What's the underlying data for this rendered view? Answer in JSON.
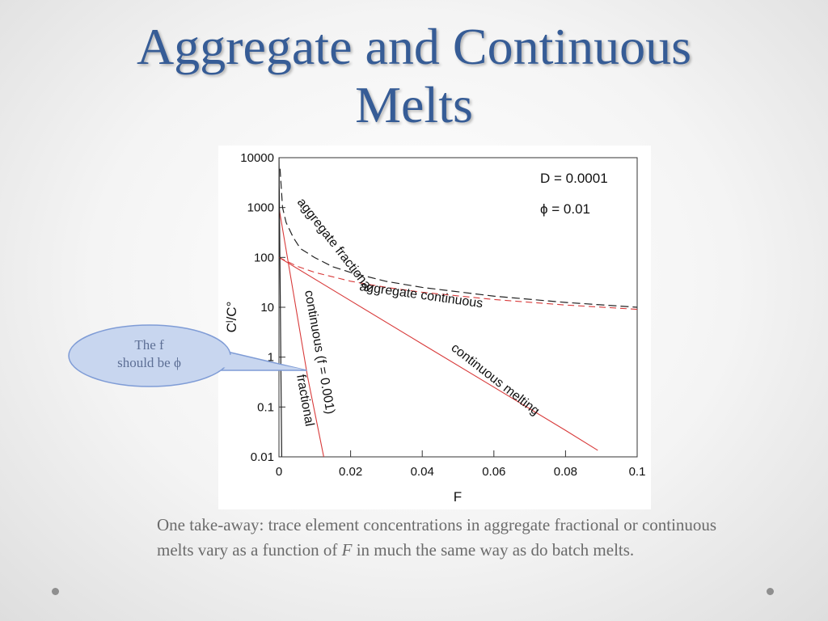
{
  "slide": {
    "title_line1": "Aggregate and Continuous",
    "title_line2": "Melts",
    "body_part1": "One take-away: trace element concentrations in aggregate fractional or continuous melts vary as a function of ",
    "body_italic": "F",
    "body_part2": " in much the same way as do batch melts."
  },
  "callout": {
    "line1": "The f",
    "line2": "should be ϕ"
  },
  "colors": {
    "title": "#365c96",
    "red_curve": "#d83a3a",
    "black_curve": "#222222",
    "callout_fill": "#c8d6ef",
    "callout_border": "#7f9cd6"
  },
  "chart_data": {
    "type": "line",
    "xlabel": "F",
    "ylabel": "Cˡ/C°",
    "xlim": [
      0,
      0.1
    ],
    "ylim": [
      0.01,
      10000
    ],
    "y_scale": "log",
    "x_ticks": [
      0,
      0.02,
      0.04,
      0.06,
      0.08,
      0.1
    ],
    "x_tick_labels": [
      "0",
      "0.02",
      "0.04",
      "0.06",
      "0.08",
      "0.1"
    ],
    "y_ticks": [
      0.01,
      0.1,
      1,
      10,
      100,
      1000,
      10000
    ],
    "y_tick_labels": [
      "0.01",
      "0.1",
      "1",
      "10",
      "100",
      "1000",
      "10000"
    ],
    "annotations": [
      "D = 0.0001",
      "ϕ = 0.01"
    ],
    "series": [
      {
        "label": "aggregate fractional",
        "color": "#222222",
        "dash": "dashed",
        "x": [
          0.0003,
          0.001,
          0.002,
          0.004,
          0.006,
          0.01,
          0.015,
          0.02,
          0.03,
          0.04,
          0.06,
          0.08,
          0.1
        ],
        "y": [
          6000,
          1000,
          500,
          250,
          150,
          99,
          65,
          50,
          33,
          25,
          16.7,
          12.5,
          10
        ]
      },
      {
        "label": "aggregate continuous",
        "color": "#d83a3a",
        "dash": "dashed",
        "x": [
          0,
          0.005,
          0.01,
          0.02,
          0.03,
          0.04,
          0.06,
          0.08,
          0.1
        ],
        "y": [
          100,
          66.7,
          50,
          33.3,
          25,
          20,
          14.3,
          11.1,
          9.1
        ]
      },
      {
        "label": "continuous melting",
        "color": "#d83a3a",
        "dash": "solid",
        "x": [
          0,
          0.02,
          0.04,
          0.06,
          0.08,
          0.089
        ],
        "y": [
          100,
          13.5,
          1.83,
          0.25,
          0.034,
          0.0135
        ]
      },
      {
        "label": "continuous (f = 0.001)",
        "color": "#d83a3a",
        "dash": "solid",
        "x": [
          0,
          0.004,
          0.008,
          0.0125
        ],
        "y": [
          1000,
          20,
          0.4,
          0.01
        ]
      },
      {
        "label": "fractional",
        "color": "#222222",
        "dash": "solid",
        "x": [
          0,
          0.0003,
          0.0006,
          0.0009
        ],
        "y": [
          10000,
          49.8,
          0.2,
          0.001
        ]
      }
    ],
    "curve_labels": [
      "aggregate fractional",
      "aggregate continuous",
      "continuous (f = 0.001)",
      "continuous melting",
      "fractional"
    ]
  }
}
